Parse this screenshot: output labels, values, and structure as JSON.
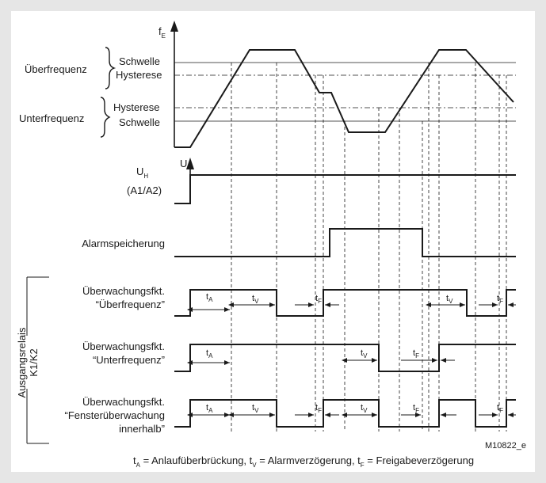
{
  "axes": {
    "freq_axis_symbol": "f",
    "freq_axis_sub": "E",
    "voltage_axis_symbol": "U"
  },
  "levels": {
    "ueberfrequenz": "Überfrequenz",
    "unterfrequenz": "Unterfrequenz",
    "schwelle_upper": "Schwelle",
    "hysterese_upper": "Hysterese",
    "hysterese_lower": "Hysterese",
    "schwelle_lower": "Schwelle"
  },
  "supply": {
    "symbol": "U",
    "sub": "H",
    "terminal": "(A1/A2)"
  },
  "signals": {
    "alarmspeicherung": "Alarmspeicherung",
    "ueber_line1": "Überwachungsfkt.",
    "ueber_line2": "“Überfrequenz”",
    "unter_line1": "Überwachungsfkt.",
    "unter_line2": "“Unterfrequenz”",
    "fenster_line1": "Überwachungsfkt.",
    "fenster_line2": "“Fensterüberwachung",
    "fenster_line3": "innerhalb”"
  },
  "group_label_line1": "Ausgangsrelais",
  "group_label_line2": "K1/K2",
  "time_labels": {
    "tA": "t",
    "tA_sub": "A",
    "tV": "t",
    "tV_sub": "V",
    "tF": "t",
    "tF_sub": "F"
  },
  "figure_id": "M10822_e",
  "legend": {
    "tA": "t",
    "tA_sub": "A",
    "tA_text": " = Anlaufüberbrückung, ",
    "tV": "t",
    "tV_sub": "V",
    "tV_text": " = Alarmverzögerung, ",
    "tF": "t",
    "tF_sub": "F",
    "tF_text": " = Freigabeverzögerung"
  },
  "colors": {
    "background": "#e6e6e6",
    "panel": "#ffffff",
    "ink": "#1a1a1a"
  }
}
